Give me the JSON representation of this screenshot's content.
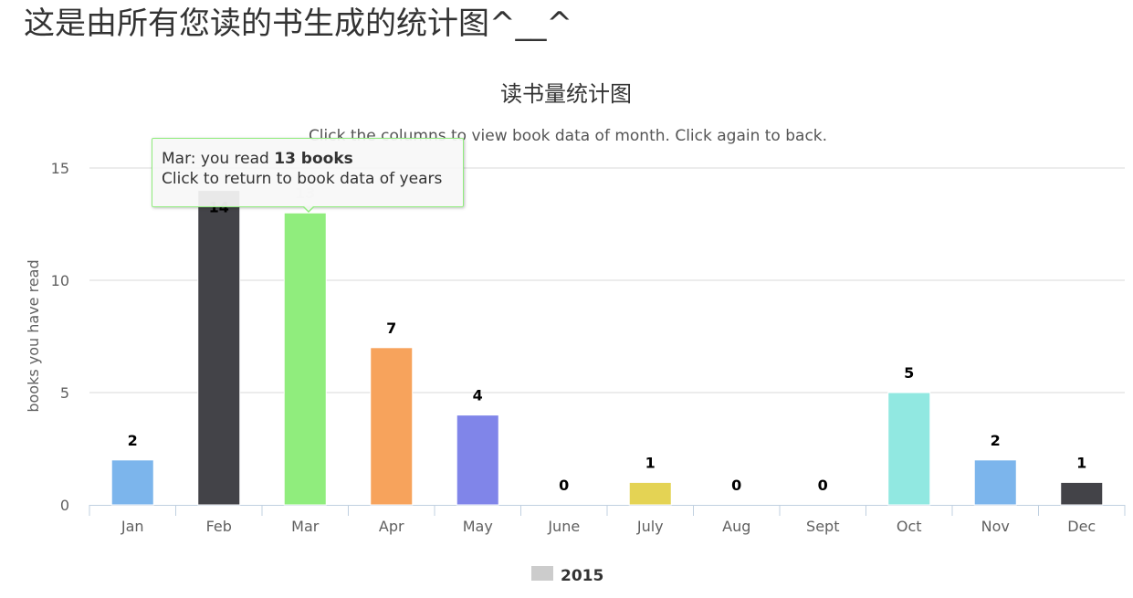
{
  "page": {
    "heading": "这是由所有您读的书生成的统计图^__^"
  },
  "tooltip": {
    "line1_prefix": "Mar: you read ",
    "line1_bold": "13 books",
    "line2": "Click to return to book data of years"
  },
  "chart_data": {
    "type": "bar",
    "title": "读书量统计图",
    "subtitle": "Click the columns to view book data of month. Click again to back.",
    "xlabel": "",
    "ylabel": "books you have read",
    "ylim": [
      0,
      15
    ],
    "yticks": [
      0,
      5,
      10,
      15
    ],
    "grid": true,
    "legend": {
      "placement": "bottom-center",
      "entries": [
        {
          "label": "2015",
          "color": "#cccccc"
        }
      ]
    },
    "categories": [
      "Jan",
      "Feb",
      "Mar",
      "Apr",
      "May",
      "June",
      "July",
      "Aug",
      "Sept",
      "Oct",
      "Nov",
      "Dec"
    ],
    "series": [
      {
        "name": "2015",
        "values": [
          2,
          14,
          13,
          7,
          4,
          0,
          1,
          0,
          0,
          5,
          2,
          1
        ]
      }
    ],
    "bar_colors": [
      "#7cb5ec",
      "#434348",
      "#90ed7d",
      "#f7a35c",
      "#8085e9",
      "#f15c80",
      "#e4d354",
      "#2b908f",
      "#f45b5b",
      "#91e8e1",
      "#7cb5ec",
      "#434348"
    ],
    "highlighted_category": "Mar"
  }
}
